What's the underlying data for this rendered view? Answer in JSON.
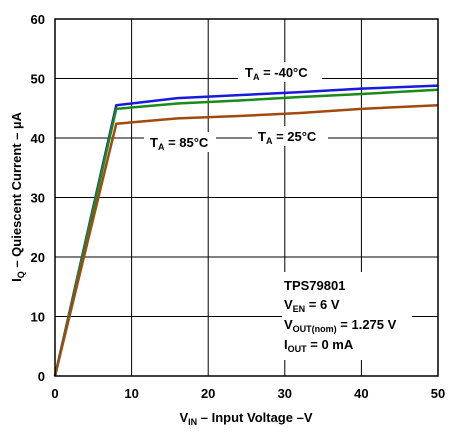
{
  "chart_data": {
    "type": "line",
    "x_axis": {
      "label_main": "V",
      "label_sub": "IN",
      "label_rest": " – Input Voltage –V",
      "min": 0,
      "max": 50,
      "ticks": [
        0,
        10,
        20,
        30,
        40,
        50
      ]
    },
    "y_axis": {
      "label_main": "I",
      "label_sub": "Q",
      "label_rest": " – Quiescent Current – µA",
      "min": 0,
      "max": 60,
      "ticks": [
        0,
        10,
        20,
        30,
        40,
        50,
        60
      ]
    },
    "grid": true,
    "series": [
      {
        "name": "-40°C",
        "color": "#1a1adc",
        "points": [
          [
            0,
            0
          ],
          [
            8,
            45.5
          ],
          [
            16,
            46.7
          ],
          [
            24,
            47.2
          ],
          [
            32,
            47.7
          ],
          [
            40,
            48.3
          ],
          [
            50,
            48.8
          ]
        ]
      },
      {
        "name": "25°C",
        "color": "#1a8a1a",
        "points": [
          [
            0,
            0
          ],
          [
            8,
            44.9
          ],
          [
            16,
            45.8
          ],
          [
            24,
            46.3
          ],
          [
            32,
            46.9
          ],
          [
            40,
            47.4
          ],
          [
            50,
            48.1
          ]
        ]
      },
      {
        "name": "85°C",
        "color": "#a04a10",
        "points": [
          [
            0,
            0
          ],
          [
            8,
            42.4
          ],
          [
            16,
            43.3
          ],
          [
            24,
            43.7
          ],
          [
            32,
            44.2
          ],
          [
            40,
            44.9
          ],
          [
            50,
            45.5
          ]
        ]
      }
    ],
    "series_labels": [
      {
        "prefix": "T",
        "sub": "A",
        "text": " = -40°C"
      },
      {
        "prefix": "T",
        "sub": "A",
        "text": " = 85°C"
      },
      {
        "prefix": "T",
        "sub": "A",
        "text": " = 25°C"
      }
    ],
    "conditions": {
      "part": "TPS79801",
      "ven_main": "V",
      "ven_sub": "EN",
      "ven_value": " = 6 V",
      "vout_main": "V",
      "vout_sub": "OUT(nom)",
      "vout_value": " = 1.275 V",
      "iout_main": "I",
      "iout_sub": "OUT",
      "iout_value": " = 0 mA"
    }
  }
}
